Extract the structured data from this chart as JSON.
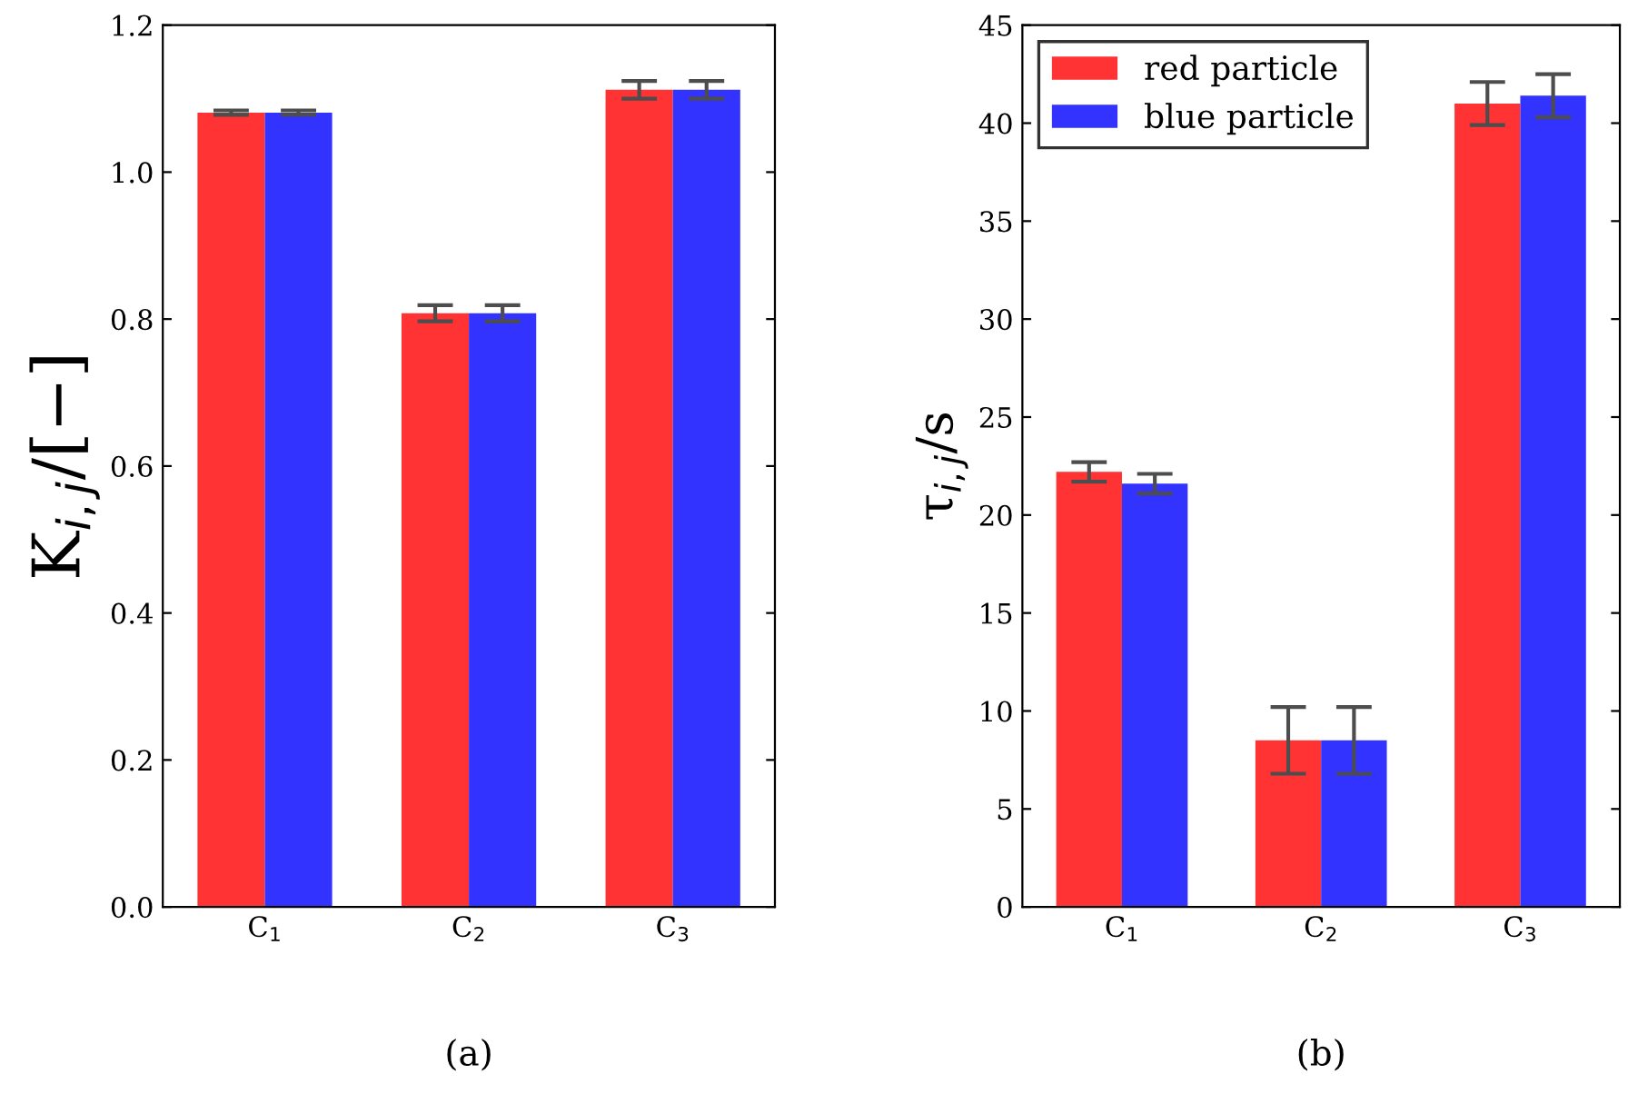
{
  "chart_data": [
    {
      "type": "bar",
      "xlabel": "(a)",
      "ylabel": "K$_{i,j}$/[−]",
      "categories": [
        "C$_{1}$",
        "C$_{2}$",
        "C$_{3}$"
      ],
      "series": [
        {
          "color": "#ff3333",
          "values": [
            1.081,
            0.808,
            1.112
          ],
          "errors": [
            0.003,
            0.011,
            0.012
          ]
        },
        {
          "color": "#3333ff",
          "values": [
            1.081,
            0.808,
            1.112
          ],
          "errors": [
            0.003,
            0.011,
            0.012
          ]
        }
      ],
      "ylim": [
        0,
        1.2
      ],
      "yticks": [
        {
          "value": 0,
          "label": "0.0"
        },
        0.2,
        0.4,
        0.6,
        0.8,
        {
          "value": 1,
          "label": "1.0"
        },
        1.2
      ],
      "grid": false,
      "legend": false
    },
    {
      "type": "bar",
      "xlabel": "(b)",
      "ylabel": "τ$_{i,j}$/s",
      "categories": [
        "C$_{1}$",
        "C$_{2}$",
        "C$_{3}$"
      ],
      "series": [
        {
          "name": "red particle",
          "color": "#ff3333",
          "values": [
            22.2,
            8.5,
            41.0
          ],
          "errors": [
            0.5,
            1.7,
            1.1
          ]
        },
        {
          "name": "blue particle",
          "color": "#3333ff",
          "values": [
            21.6,
            8.5,
            41.4
          ],
          "errors": [
            0.5,
            1.7,
            1.1
          ]
        }
      ],
      "ylim": [
        0,
        45
      ],
      "yticks": [
        0,
        5,
        10,
        15,
        20,
        25,
        30,
        35,
        40,
        45
      ],
      "grid": false,
      "legend": "top left"
    }
  ]
}
